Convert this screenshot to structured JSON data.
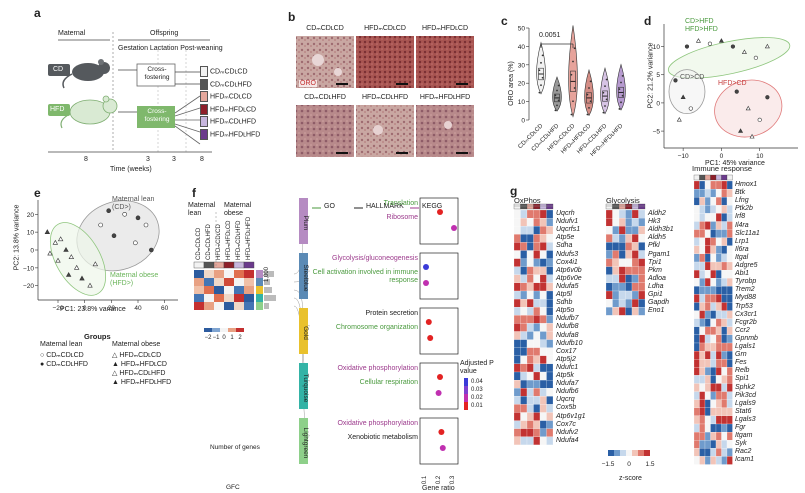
{
  "panels": {
    "a": {
      "letter": "a",
      "header_maternal": "Maternal",
      "header_offspring": "Offspring",
      "phases": "Gestation Lactation Post-weaning",
      "cd_label": "CD",
      "hfd_label": "HFD",
      "cross_fostering": "Cross-fostering",
      "groups": [
        "CDₘCDʟCD",
        "CDₘCDʟHFD",
        "HFDₘCDʟCD",
        "HFDₘHFDʟCD",
        "HFDₘCDʟHFD",
        "HFDₘHFDʟHFD"
      ],
      "group_colors": [
        "#f2f2f2",
        "#555555",
        "#e4a79c",
        "#8e1f2a",
        "#c7b6dd",
        "#6b3a8c"
      ],
      "time_ticks": [
        "8",
        "3",
        "3",
        "8"
      ],
      "time_label": "Time (weeks)"
    },
    "b": {
      "letter": "b",
      "top_titles": [
        "CDₘCDʟCD",
        "HFDₘCDʟCD",
        "HFDₘHFDʟCD"
      ],
      "bottom_titles": [
        "CDₘCDʟHFD",
        "HFDₘCDʟHFD",
        "HFDₘHFDʟHFD"
      ],
      "stain_label": "ORO"
    },
    "c": {
      "letter": "c",
      "pvalue": "0.0051",
      "ylabel": "ORO area (%)",
      "yticks": [
        "0",
        "10",
        "20",
        "30",
        "40",
        "50"
      ],
      "xlabels": [
        "CDₘCDʟCD",
        "CDₘCDʟHFD",
        "HFDₘCDʟCD",
        "HFDₘHFDʟCD",
        "HFDₘCDʟHFD",
        "HFDₘHFDʟHFD"
      ]
    },
    "d": {
      "letter": "d",
      "xlabel": "PC1: 45% variance",
      "ylabel": "PC2: 21.2% variance",
      "xticks": [
        "−10",
        "0",
        "10"
      ],
      "yticks": [
        "10",
        "5",
        "0",
        "−5"
      ],
      "annot_green": "CD>HFD HFD>HFD",
      "annot_grey": "CD>CD",
      "annot_red": "HFD>CD"
    },
    "e": {
      "letter": "e",
      "xlabel": "PC1: 23.8% variance",
      "ylabel": "PC2: 13.8% variance",
      "xticks": [
        "−20",
        "0",
        "20",
        "40",
        "60"
      ],
      "yticks": [
        "20",
        "10",
        "0",
        "−10",
        "−20"
      ],
      "annot_lean": "Maternal lean (CD>)",
      "annot_obese": "Maternal obese (HFD>)",
      "legend_title": "Groups",
      "legend_lean_header": "Maternal lean",
      "legend_obese_header": "Maternal obese",
      "legend_lean": [
        "CDₘCDʟCD",
        "CDₘCDʟHFD"
      ],
      "legend_obese": [
        "HFDₘCDʟCD",
        "HFDₘHFDʟCD",
        "HFDₘCDʟHFD",
        "HFDₘHFDʟHFD"
      ]
    },
    "f": {
      "letter": "f",
      "header_lean": "Maternal lean",
      "header_obese": "Maternal obese",
      "col_labels": [
        "CDₘCDʟCD",
        "CDₘCDʟHFD",
        "HFDₘCDʟCD",
        "HFDₘHFDʟCD",
        "HFDₘCDʟHFD",
        "HFDₘHFDʟHFD"
      ],
      "num_genes_label": "Number of genes",
      "num_genes_ticks": [
        "1,000",
        "0"
      ],
      "gfc_label": "GFC",
      "gfc_ticks": [
        "−2",
        "−1",
        "0",
        "1",
        "2"
      ],
      "legend_items": [
        "GO",
        "HALLMARK",
        "KEGG"
      ],
      "modules": [
        "Plum",
        "Steelblue",
        "Gold",
        "Turquoise",
        "Lightgreen"
      ],
      "module_colors": [
        "#b58bc2",
        "#5b8ab5",
        "#e9c12c",
        "#34b3a6",
        "#8ed08a"
      ],
      "terms": [
        [
          "Translation",
          "Ribosome"
        ],
        [
          "Glycolysis/gluconeogenesis",
          "Cell activation involved in immune response"
        ],
        [
          "Protein secretion",
          "Chromosome organization"
        ],
        [
          "Oxidative phosphorylation",
          "Cellular respiration"
        ],
        [
          "Oxidative phosphorylation",
          "Xenobiotic metabolism"
        ]
      ],
      "xticks": [
        "0.1",
        "0.2",
        "0.3"
      ],
      "xlabel": "Gene ratio",
      "padj_title": "Adjusted P value",
      "padj_ticks": [
        "0.04",
        "0.03",
        "0.02",
        "0.01"
      ]
    },
    "g": {
      "letter": "g",
      "oxphos_title": "OxPhos",
      "glycolysis_title": "Glycolysis",
      "immune_title": "Immune response",
      "oxphos_genes": [
        "Uqcrh",
        "Ndufv1",
        "Uqcrfs1",
        "Atp5e",
        "Sdha",
        "Ndufs3",
        "Cox4i1",
        "Atp6v0b",
        "Atp6v0e",
        "Ndufa5",
        "Atp5l",
        "Sdhb",
        "Atp5o",
        "Ndufb7",
        "Ndufb8",
        "Ndufa8",
        "Ndufb10",
        "Cox17",
        "Atp5j2",
        "Ndufc1",
        "Atp5k",
        "Ndufa7",
        "Ndufb6",
        "Uqcrq",
        "Cox5b",
        "Atp6v1g1",
        "Cox7c",
        "Ndufv2",
        "Ndufa4"
      ],
      "glycolysis_genes": [
        "Aldh2",
        "Hk3",
        "Aldh3b1",
        "Aldh5",
        "Pfkl",
        "Pgam1",
        "Tpi1",
        "Pkm",
        "Adloa",
        "Ldha",
        "Gpi1",
        "Gapdh",
        "Eno1"
      ],
      "immune_genes": [
        "Hmox1",
        "Btk",
        "Lfng",
        "Ptk2b",
        "Irf8",
        "Il4ra",
        "Slc11a1",
        "Lrp1",
        "Il6ra",
        "Itgal",
        "Adgre5",
        "Abi1",
        "Tyrobp",
        "Trem2",
        "Myd88",
        "Trp53",
        "Cx3cr1",
        "Fcgr2b",
        "Ccr2",
        "Gpnmb",
        "Lgals1",
        "Grn",
        "Fes",
        "Relb",
        "Spi1",
        "Sphk2",
        "Pik3cd",
        "Lgals9",
        "Stat6",
        "Lgals3",
        "Fgr",
        "Itgam",
        "Syk",
        "Rac2",
        "Icam1"
      ],
      "zscore_label": "z-score",
      "zscore_ticks": [
        "−1.5",
        "0",
        "1.5"
      ]
    }
  }
}
